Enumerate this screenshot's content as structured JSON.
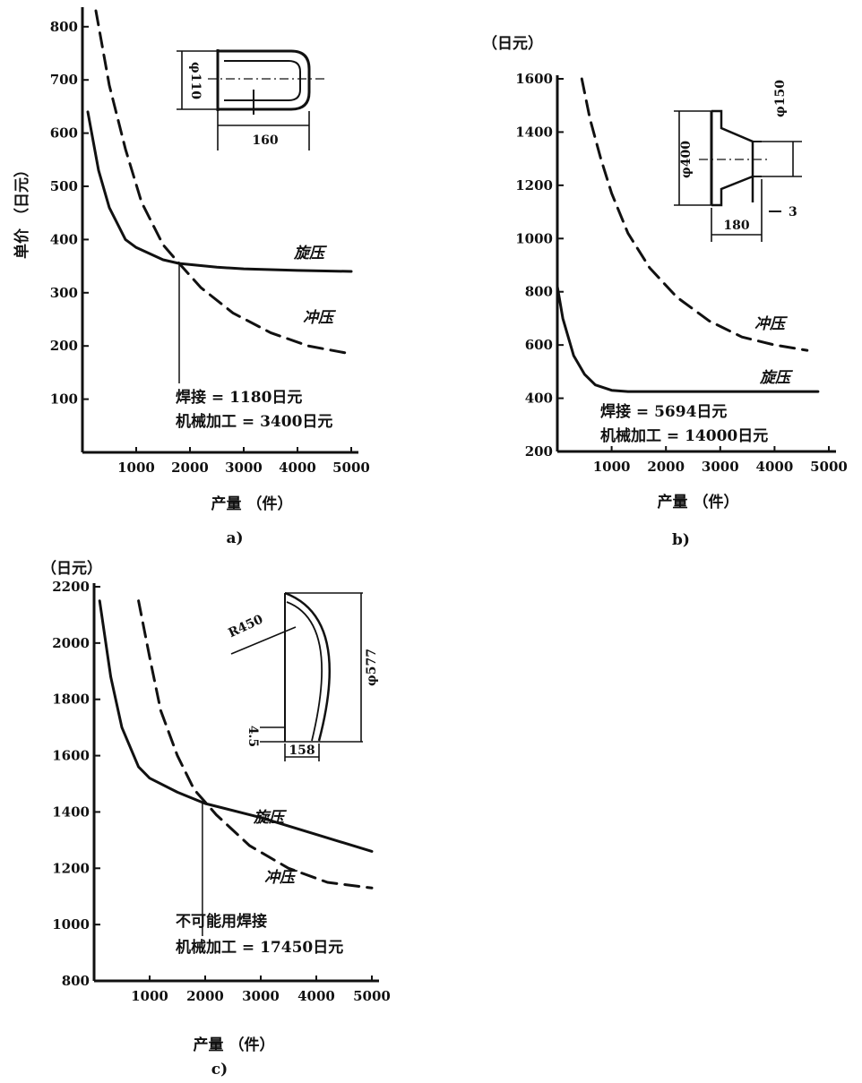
{
  "chart_data": [
    {
      "type": "line",
      "panel_label": "a)",
      "xlabel": "产量 （件）",
      "ylabel": "单价 （日元）",
      "xlim": [
        0,
        5000
      ],
      "ylim": [
        0,
        830
      ],
      "xticks": [
        1000,
        2000,
        3000,
        4000,
        5000
      ],
      "xtick_labels": [
        "1000",
        "2000",
        "3000",
        "4000",
        "5000"
      ],
      "yticks": [
        100,
        200,
        300,
        400,
        500,
        600,
        700,
        800
      ],
      "ytick_labels": [
        "100",
        "200",
        "300",
        "400",
        "500",
        "600",
        "700",
        "800"
      ],
      "series": [
        {
          "name": "旋压",
          "style": "solid",
          "x": [
            100,
            300,
            500,
            800,
            1000,
            1500,
            1800,
            2500,
            3000,
            4000,
            5000
          ],
          "y": [
            640,
            530,
            460,
            400,
            385,
            362,
            355,
            348,
            345,
            342,
            340
          ]
        },
        {
          "name": "冲压",
          "style": "dashed",
          "x": [
            250,
            500,
            800,
            1100,
            1500,
            1800,
            2200,
            2800,
            3500,
            4200,
            5000
          ],
          "y": [
            830,
            690,
            570,
            470,
            390,
            355,
            310,
            262,
            225,
            200,
            185
          ]
        }
      ],
      "crossover": {
        "x": 1800,
        "y": 355
      },
      "annotations": [
        "焊接 = 1180日元",
        "机械加工 = 3400日元"
      ],
      "inset_dims": [
        "φ110",
        "160"
      ]
    },
    {
      "type": "line",
      "panel_label": "b)",
      "xlabel": "产量 （件）",
      "ylabel": "（日元）",
      "xlim": [
        0,
        5000
      ],
      "ylim": [
        200,
        1600
      ],
      "xticks": [
        1000,
        2000,
        3000,
        4000,
        5000
      ],
      "xtick_labels": [
        "1000",
        "2000",
        "3000",
        "4000",
        "5000"
      ],
      "yticks": [
        200,
        400,
        600,
        800,
        1000,
        1200,
        1400,
        1600
      ],
      "ytick_labels": [
        "200",
        "400",
        "600",
        "800",
        "1000",
        "1200",
        "1400",
        "1600"
      ],
      "series": [
        {
          "name": "冲压",
          "style": "dashed",
          "x": [
            450,
            600,
            800,
            1000,
            1300,
            1700,
            2200,
            2800,
            3400,
            4000,
            4600
          ],
          "y": [
            1600,
            1450,
            1300,
            1170,
            1020,
            890,
            780,
            690,
            630,
            600,
            580
          ]
        },
        {
          "name": "旋压",
          "style": "solid",
          "x": [
            0,
            100,
            300,
            500,
            700,
            1000,
            1300,
            2000,
            3000,
            4000,
            4800
          ],
          "y": [
            820,
            700,
            560,
            490,
            450,
            430,
            425,
            425,
            425,
            425,
            425
          ]
        }
      ],
      "annotations": [
        "焊接 = 5694日元",
        "机械加工 = 14000日元"
      ],
      "inset_dims": [
        "φ400",
        "φ150",
        "180",
        "3"
      ]
    },
    {
      "type": "line",
      "panel_label": "c)",
      "xlabel": "产量 （件）",
      "ylabel": "（日元）",
      "xlim": [
        0,
        5000
      ],
      "ylim": [
        800,
        2200
      ],
      "xticks": [
        1000,
        2000,
        3000,
        4000,
        5000
      ],
      "xtick_labels": [
        "1000",
        "2000",
        "3000",
        "4000",
        "5000"
      ],
      "yticks": [
        800,
        1000,
        1200,
        1400,
        1600,
        1800,
        2000,
        2200
      ],
      "ytick_labels": [
        "800",
        "1000",
        "1200",
        "1400",
        "1600",
        "1800",
        "2000",
        "2200"
      ],
      "series": [
        {
          "name": "旋压",
          "style": "solid",
          "x": [
            100,
            300,
            500,
            800,
            1000,
            1500,
            2000,
            3000,
            4000,
            5000
          ],
          "y": [
            2150,
            1880,
            1700,
            1560,
            1520,
            1470,
            1430,
            1380,
            1320,
            1260
          ]
        },
        {
          "name": "冲压",
          "style": "dashed",
          "x": [
            800,
            1000,
            1200,
            1500,
            1800,
            2200,
            2800,
            3500,
            4200,
            5000
          ],
          "y": [
            2150,
            1950,
            1760,
            1600,
            1480,
            1390,
            1280,
            1200,
            1150,
            1130
          ]
        }
      ],
      "crossover": {
        "x": 1950,
        "y": 1430
      },
      "annotations": [
        "不可能用焊接",
        "机械加工 = 17450日元"
      ],
      "inset_dims": [
        "R450",
        "φ577",
        "4.5",
        "158"
      ]
    }
  ]
}
